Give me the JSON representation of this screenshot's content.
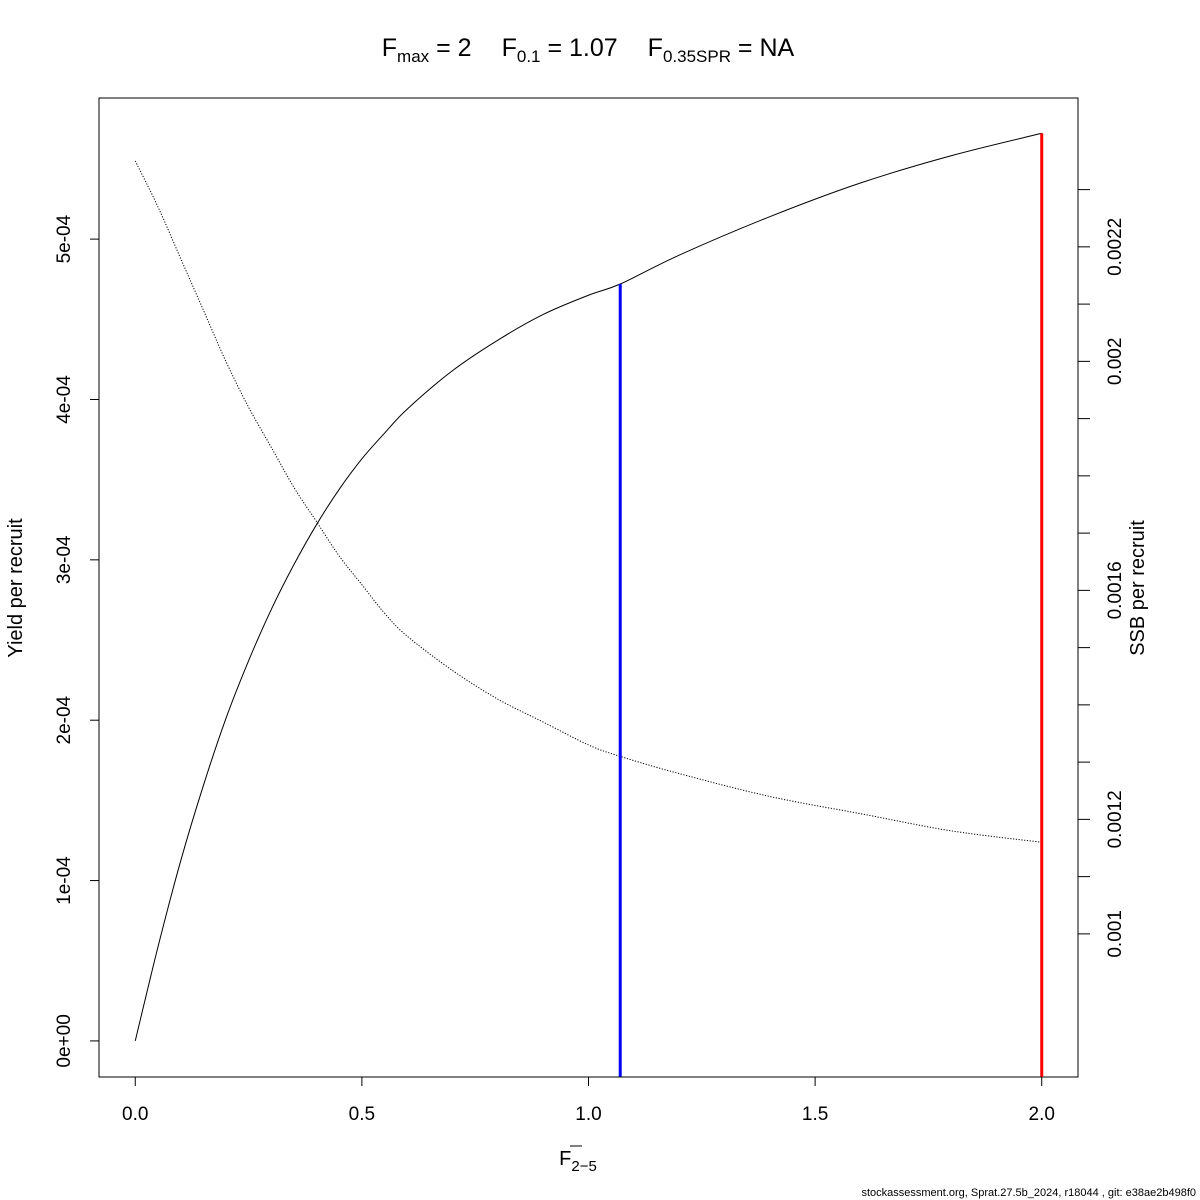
{
  "chart_data": {
    "type": "line",
    "title_parts": [
      {
        "base": "F",
        "sub": "max",
        "rest": " = 2"
      },
      {
        "base": "F",
        "sub": "0.1",
        "rest": " = 1.07"
      },
      {
        "base": "F",
        "sub": "0.35SPR",
        "rest": " = NA"
      }
    ],
    "xlabel": {
      "base": "F",
      "sub": "2−5",
      "overbar": true
    },
    "ylabel": "Yield per recruit",
    "y2label": "SSB per recruit",
    "xlim": [
      -0.08,
      2.08
    ],
    "ylim": [
      -2.25e-05,
      0.000588
    ],
    "y2lim": [
      0.00075,
      0.00246
    ],
    "x_ticks": [
      0.0,
      0.5,
      1.0,
      1.5,
      2.0
    ],
    "x_tick_labels": [
      "0.0",
      "0.5",
      "1.0",
      "1.5",
      "2.0"
    ],
    "y_ticks": [
      0,
      0.0001,
      0.0002,
      0.0003,
      0.0004,
      0.0005
    ],
    "y_tick_labels": [
      "0e+00",
      "1e-04",
      "2e-04",
      "3e-04",
      "4e-04",
      "5e-04"
    ],
    "y2_ticks": [
      0.001,
      0.0011,
      0.0012,
      0.0013,
      0.0014,
      0.0015,
      0.0016,
      0.0017,
      0.0018,
      0.0019,
      0.002,
      0.0021,
      0.0022,
      0.0023
    ],
    "y2_tick_labels": [
      {
        "value": 0.001,
        "label": "0.001"
      },
      {
        "value": 0.0012,
        "label": "0.0012"
      },
      {
        "value": 0.0016,
        "label": "0.0016"
      },
      {
        "value": 0.002,
        "label": "0.002"
      },
      {
        "value": 0.0022,
        "label": "0.0022"
      }
    ],
    "series": [
      {
        "axis": "left",
        "style": "solid",
        "x": [
          0.0,
          0.05,
          0.1,
          0.15,
          0.2,
          0.25,
          0.3,
          0.35,
          0.4,
          0.45,
          0.5,
          0.55,
          0.6,
          0.7,
          0.8,
          0.9,
          1.0,
          1.07,
          1.2,
          1.4,
          1.6,
          1.8,
          2.0
        ],
        "y": [
          0.0,
          5.85e-05,
          0.000112,
          0.000159,
          0.000201,
          0.000237,
          0.000269,
          0.000297,
          0.000322,
          0.000344,
          0.000363,
          0.000379,
          0.000394,
          0.000418,
          0.000437,
          0.000453,
          0.000465,
          0.000472,
          0.00049,
          0.000514,
          0.000535,
          0.000552,
          0.000566
        ]
      },
      {
        "axis": "right",
        "style": "dotted",
        "x": [
          0.0,
          0.05,
          0.1,
          0.15,
          0.2,
          0.25,
          0.3,
          0.35,
          0.4,
          0.45,
          0.5,
          0.55,
          0.6,
          0.7,
          0.8,
          0.9,
          1.0,
          1.07,
          1.2,
          1.4,
          1.6,
          1.8,
          2.0
        ],
        "y": [
          0.00235,
          0.00227,
          0.00218,
          0.00209,
          0.002,
          0.00192,
          0.00185,
          0.00178,
          0.00172,
          0.00166,
          0.00161,
          0.00156,
          0.00152,
          0.00146,
          0.00141,
          0.00137,
          0.00133,
          0.00131,
          0.00128,
          0.00124,
          0.00121,
          0.00118,
          0.00116
        ]
      }
    ],
    "reference_lines": [
      {
        "x": 1.07,
        "y_top": 0.000472,
        "color": "#0000ff"
      },
      {
        "x": 2.0,
        "y_top": 0.000566,
        "color": "#ff0000"
      }
    ]
  },
  "footer": "stockassessment.org, Sprat.27.5b_2024, r18044 , git: e38ae2b498f0"
}
